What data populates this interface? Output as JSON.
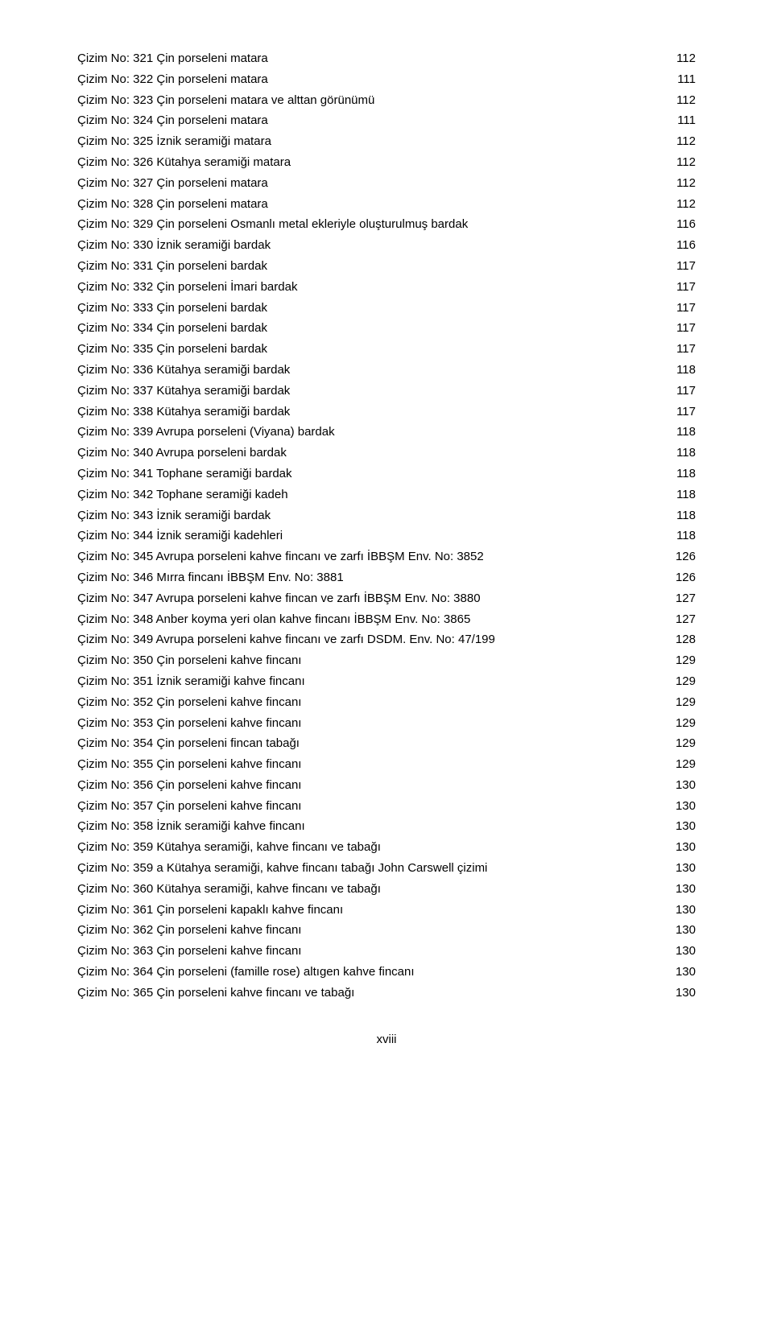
{
  "toc": {
    "entries": [
      {
        "label": "Çizim No: 321 Çin porseleni matara",
        "page": "112"
      },
      {
        "label": "Çizim No: 322 Çin porseleni matara",
        "page": "111"
      },
      {
        "label": "Çizim No: 323 Çin porseleni matara ve alttan görünümü",
        "page": "112"
      },
      {
        "label": "Çizim No: 324 Çin porseleni matara",
        "page": "111"
      },
      {
        "label": "Çizim No: 325 İznik seramiği matara",
        "page": "112"
      },
      {
        "label": "Çizim No: 326 Kütahya seramiği matara",
        "page": "112"
      },
      {
        "label": "Çizim No: 327 Çin porseleni matara",
        "page": "112"
      },
      {
        "label": "Çizim No: 328 Çin porseleni matara",
        "page": "112"
      },
      {
        "label": "Çizim No: 329 Çin porseleni Osmanlı metal ekleriyle oluşturulmuş bardak",
        "page": "116"
      },
      {
        "label": "Çizim No: 330 İznik seramiği bardak",
        "page": "116"
      },
      {
        "label": "Çizim No: 331 Çin porseleni bardak",
        "page": "117"
      },
      {
        "label": "Çizim No: 332 Çin porseleni İmari bardak",
        "page": "117"
      },
      {
        "label": "Çizim No: 333 Çin porseleni bardak",
        "page": "117"
      },
      {
        "label": "Çizim No: 334 Çin porseleni bardak",
        "page": "117"
      },
      {
        "label": "Çizim No: 335 Çin porseleni bardak",
        "page": "117"
      },
      {
        "label": "Çizim No: 336 Kütahya seramiği bardak",
        "page": "118"
      },
      {
        "label": "Çizim No: 337 Kütahya seramiği bardak",
        "page": "117"
      },
      {
        "label": "Çizim No: 338 Kütahya seramiği bardak",
        "page": "117"
      },
      {
        "label": "Çizim No: 339 Avrupa porseleni (Viyana) bardak",
        "page": "118"
      },
      {
        "label": "Çizim No: 340 Avrupa porseleni bardak",
        "page": "118"
      },
      {
        "label": "Çizim No: 341 Tophane seramiği bardak",
        "page": "118"
      },
      {
        "label": "Çizim No: 342 Tophane seramiği kadeh",
        "page": "118"
      },
      {
        "label": "Çizim No: 343 İznik seramiği bardak",
        "page": "118"
      },
      {
        "label": "Çizim No: 344 İznik seramiği kadehleri",
        "page": "118"
      },
      {
        "label": "Çizim No: 345 Avrupa porseleni kahve fincanı ve zarfı İBBŞM Env. No: 3852",
        "page": "126"
      },
      {
        "label": "Çizim No: 346 Mırra fincanı İBBŞM Env. No: 3881",
        "page": "126"
      },
      {
        "label": "Çizim No: 347 Avrupa porseleni kahve fincan ve zarfı İBBŞM Env. No: 3880",
        "page": "127"
      },
      {
        "label": "Çizim No: 348 Anber koyma yeri olan kahve fincanı İBBŞM Env. No: 3865",
        "page": "127"
      },
      {
        "label": "Çizim No: 349 Avrupa porseleni kahve fincanı ve zarfı DSDM. Env. No: 47/199",
        "page": "128"
      },
      {
        "label": "Çizim No: 350 Çin porseleni kahve fincanı",
        "page": "129"
      },
      {
        "label": "Çizim No: 351 İznik seramiği kahve fincanı",
        "page": "129"
      },
      {
        "label": "Çizim No: 352 Çin porseleni kahve fincanı",
        "page": "129"
      },
      {
        "label": "Çizim No: 353 Çin porseleni kahve fincanı",
        "page": "129"
      },
      {
        "label": "Çizim No: 354 Çin porseleni fincan tabağı",
        "page": "129"
      },
      {
        "label": "Çizim No: 355 Çin porseleni kahve fincanı",
        "page": "129"
      },
      {
        "label": "Çizim No: 356 Çin porseleni kahve fincanı",
        "page": "130"
      },
      {
        "label": "Çizim No: 357 Çin porseleni kahve fincanı",
        "page": "130"
      },
      {
        "label": "Çizim No: 358 İznik seramiği kahve fincanı",
        "page": "130"
      },
      {
        "label": "Çizim No: 359 Kütahya seramiği, kahve fincanı ve tabağı",
        "page": "130"
      },
      {
        "label": "Çizim No: 359 a Kütahya seramiği, kahve fincanı tabağı John Carswell çizimi",
        "page": "130"
      },
      {
        "label": "Çizim No: 360 Kütahya seramiği, kahve fincanı ve tabağı",
        "page": "130"
      },
      {
        "label": "Çizim No: 361 Çin porseleni kapaklı kahve fincanı",
        "page": "130"
      },
      {
        "label": "Çizim No: 362 Çin porseleni kahve fincanı",
        "page": "130"
      },
      {
        "label": "Çizim No: 363 Çin porseleni kahve fincanı",
        "page": "130"
      },
      {
        "label": "Çizim No: 364 Çin porseleni (famille rose) altıgen kahve fincanı",
        "page": "130"
      },
      {
        "label": "Çizim No: 365 Çin porseleni kahve fincanı ve tabağı",
        "page": "130"
      }
    ]
  },
  "pageNumber": "xviii",
  "style": {
    "background": "#ffffff",
    "text_color": "#000000",
    "font_size_pt": 11,
    "line_height": 1.72
  }
}
